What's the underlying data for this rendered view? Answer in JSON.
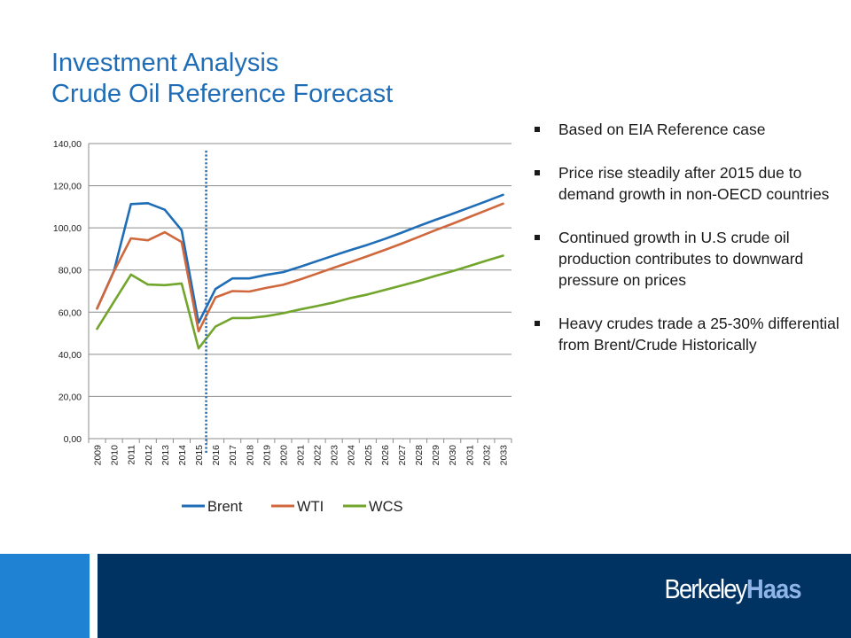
{
  "header": {
    "title_line1": "Investment Analysis",
    "title_line2": "Crude Oil Reference Forecast"
  },
  "bullets": [
    "Based on EIA Reference case",
    "Price rise steadily after 2015 due to demand growth in non-OECD countries",
    "Continued growth in U.S crude oil production contributes to downward pressure on prices",
    "Heavy crudes trade a 25-30% differential from Brent/Crude Historically"
  ],
  "footer": {
    "logo_part1": "Berkeley",
    "logo_part2": "Haas",
    "accent_color": "#1f82d2",
    "bar_color": "#003262"
  },
  "chart_data": {
    "type": "line",
    "title": "",
    "xlabel": "",
    "ylabel": "",
    "ylim": [
      0,
      140
    ],
    "yticks": [
      0,
      20,
      40,
      60,
      80,
      100,
      120,
      140
    ],
    "ytick_labels": [
      "0,00",
      "20,00",
      "40,00",
      "60,00",
      "80,00",
      "100,00",
      "120,00",
      "140,00"
    ],
    "grid": true,
    "legend_position": "bottom",
    "reference_line": {
      "after_category": "2015",
      "style": "dotted",
      "color": "#2e75b6"
    },
    "categories": [
      "2009",
      "2010",
      "2011",
      "2012",
      "2013",
      "2014",
      "2015",
      "2016",
      "2017",
      "2018",
      "2019",
      "2020",
      "2021",
      "2022",
      "2023",
      "2024",
      "2025",
      "2026",
      "2027",
      "2028",
      "2029",
      "2030",
      "2031",
      "2032",
      "2033"
    ],
    "series": [
      {
        "name": "Brent",
        "color": "#1f6db6",
        "values": [
          61.7,
          79.6,
          111.3,
          111.7,
          108.6,
          98.9,
          55.0,
          71.0,
          76.0,
          76.0,
          77.7,
          79.0,
          81.5,
          84.2,
          86.9,
          89.5,
          92.0,
          94.7,
          97.7,
          100.8,
          103.8,
          106.6,
          109.6,
          112.6,
          115.7
        ]
      },
      {
        "name": "WTI",
        "color": "#d0683d",
        "values": [
          61.7,
          79.4,
          95.0,
          94.1,
          97.9,
          93.3,
          50.9,
          67.0,
          70.0,
          69.8,
          71.5,
          73.0,
          75.5,
          78.3,
          81.1,
          83.8,
          86.6,
          89.5,
          92.5,
          95.7,
          98.9,
          101.9,
          105.1,
          108.3,
          111.5
        ]
      },
      {
        "name": "WCS",
        "color": "#72a52c",
        "values": [
          52.1,
          65.0,
          77.8,
          73.1,
          72.8,
          73.6,
          42.8,
          53.2,
          57.2,
          57.2,
          58.1,
          59.5,
          61.3,
          62.9,
          64.6,
          66.7,
          68.4,
          70.5,
          72.6,
          74.8,
          77.2,
          79.4,
          81.9,
          84.4,
          86.8
        ]
      }
    ]
  }
}
